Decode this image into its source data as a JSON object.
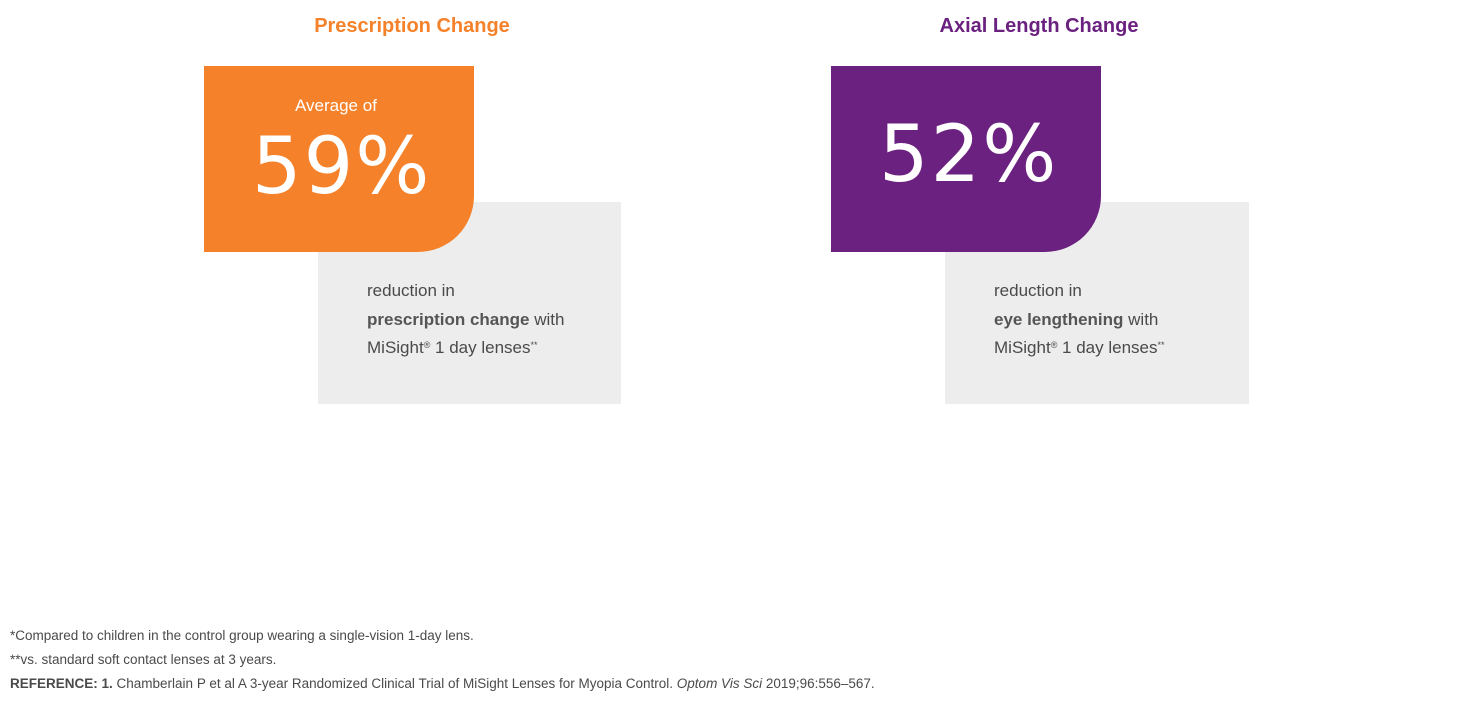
{
  "left_panel": {
    "title": "Prescription Change",
    "prefix": "Average of",
    "value": "59%",
    "desc_line1": "reduction in",
    "desc_bold": "prescription change",
    "desc_after_bold": " with",
    "desc_line3": "MiSight",
    "desc_reg": "®",
    "desc_line3_rest": " 1 day lenses",
    "desc_sup": "**"
  },
  "right_panel": {
    "title": "Axial Length Change",
    "value": "52%",
    "desc_line1": "reduction in",
    "desc_bold": "eye lengthening",
    "desc_after_bold": " with",
    "desc_line3": "MiSight",
    "desc_reg": "®",
    "desc_line3_rest": " 1 day lenses",
    "desc_sup": "**"
  },
  "footnotes": {
    "note1": "*Compared to children in the control group wearing a single-vision 1-day lens.",
    "note2": "**vs. standard soft contact lenses at 3 years.",
    "ref_label": "REFERENCE: 1.",
    "ref_text": " Chamberlain P et al A 3-year Randomized Clinical Trial of MiSight Lenses for Myopia Control. ",
    "ref_journal": "Optom Vis Sci",
    "ref_tail": " 2019;96:556–567."
  },
  "colors": {
    "orange": "#f5822a",
    "purple": "#6b2180",
    "gray_panel": "#ededed"
  }
}
